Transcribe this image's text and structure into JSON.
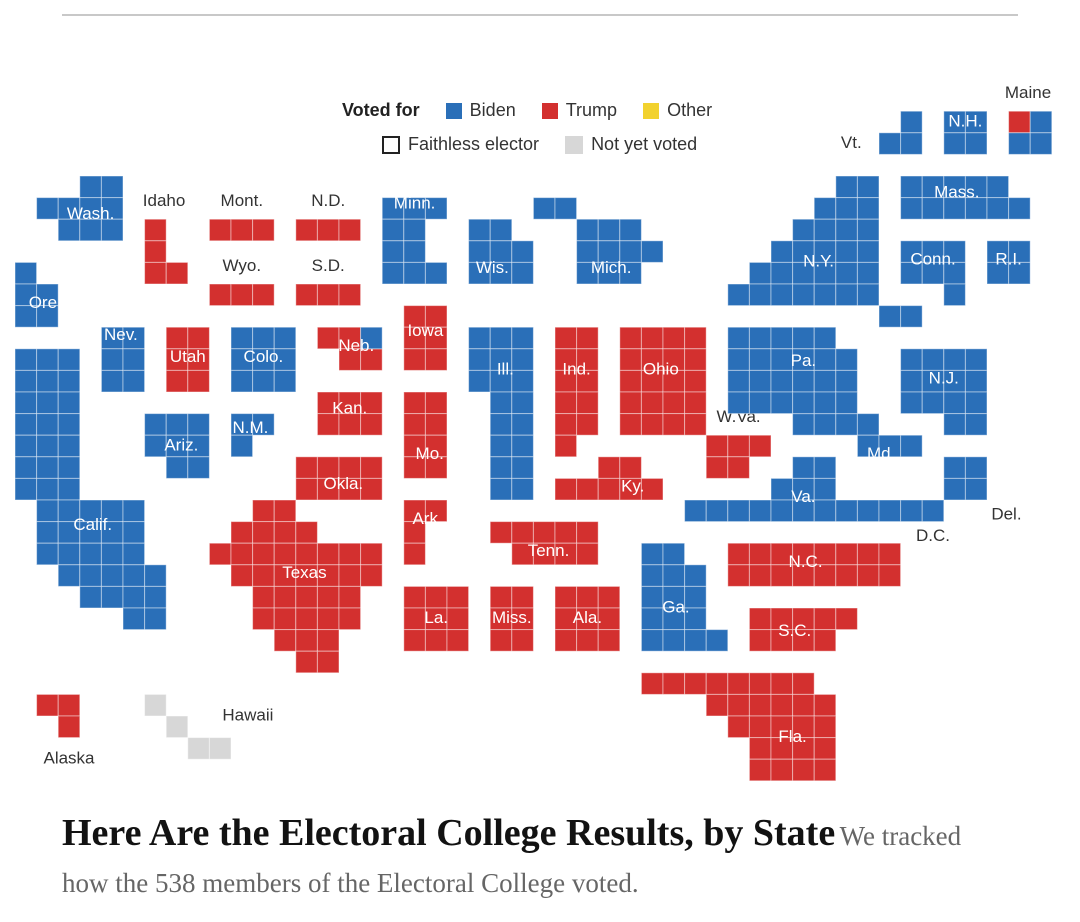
{
  "legend": {
    "title": "Voted for",
    "items": [
      {
        "label": "Biden",
        "color": "#2a6fb8"
      },
      {
        "label": "Trump",
        "color": "#d3302f"
      },
      {
        "label": "Other",
        "color": "#f2d22e"
      }
    ],
    "faithless_label": "Faithless elector",
    "not_voted_label": "Not yet voted",
    "not_voted_color": "#d7d7d7"
  },
  "colors": {
    "biden": "#2a6fb8",
    "trump": "#d3302f",
    "not_voted": "#d7d7d7",
    "outer_label": "#333333"
  },
  "states": [
    {
      "id": "wa",
      "label": "Washington",
      "text": "Wash.",
      "party": "biden",
      "electors": 12
    },
    {
      "id": "or",
      "label": "Oregon",
      "text": "Ore.",
      "party": "biden",
      "electors": 7
    },
    {
      "id": "ca",
      "label": "California",
      "text": "Calif.",
      "party": "biden",
      "electors": 55
    },
    {
      "id": "nv",
      "label": "Nevada",
      "text": "Nev.",
      "party": "biden",
      "electors": 6
    },
    {
      "id": "id",
      "label": "Idaho",
      "text": "Idaho",
      "party": "trump",
      "electors": 4
    },
    {
      "id": "mt",
      "label": "Montana",
      "text": "Mont.",
      "party": "trump",
      "electors": 3
    },
    {
      "id": "wy",
      "label": "Wyoming",
      "text": "Wyo.",
      "party": "trump",
      "electors": 3
    },
    {
      "id": "ut",
      "label": "Utah",
      "text": "Utah",
      "party": "trump",
      "electors": 6
    },
    {
      "id": "az",
      "label": "Arizona",
      "text": "Ariz.",
      "party": "biden",
      "electors": 11
    },
    {
      "id": "co",
      "label": "Colorado",
      "text": "Colo.",
      "party": "biden",
      "electors": 9
    },
    {
      "id": "nm",
      "label": "New Mexico",
      "text": "N.M.",
      "party": "biden",
      "electors": 5
    },
    {
      "id": "nd",
      "label": "North Dakota",
      "text": "N.D.",
      "party": "trump",
      "electors": 3
    },
    {
      "id": "sd",
      "label": "South Dakota",
      "text": "S.D.",
      "party": "trump",
      "electors": 3
    },
    {
      "id": "ne",
      "label": "Nebraska",
      "text": "Neb.",
      "party": "split",
      "electors": 5
    },
    {
      "id": "ks",
      "label": "Kansas",
      "text": "Kan.",
      "party": "trump",
      "electors": 6
    },
    {
      "id": "ok",
      "label": "Oklahoma",
      "text": "Okla.",
      "party": "trump",
      "electors": 7
    },
    {
      "id": "tx",
      "label": "Texas",
      "text": "Texas",
      "party": "trump",
      "electors": 38
    },
    {
      "id": "mn",
      "label": "Minnesota",
      "text": "Minn.",
      "party": "biden",
      "electors": 10
    },
    {
      "id": "ia",
      "label": "Iowa",
      "text": "Iowa",
      "party": "trump",
      "electors": 6
    },
    {
      "id": "mo",
      "label": "Missouri",
      "text": "Mo.",
      "party": "trump",
      "electors": 10
    },
    {
      "id": "ar",
      "label": "Arkansas",
      "text": "Ark.",
      "party": "trump",
      "electors": 6
    },
    {
      "id": "la",
      "label": "Louisiana",
      "text": "La.",
      "party": "trump",
      "electors": 8
    },
    {
      "id": "wi",
      "label": "Wisconsin",
      "text": "Wis.",
      "party": "biden",
      "electors": 10
    },
    {
      "id": "il",
      "label": "Illinois",
      "text": "Ill.",
      "party": "biden",
      "electors": 20
    },
    {
      "id": "ms",
      "label": "Mississippi",
      "text": "Miss.",
      "party": "trump",
      "electors": 6
    },
    {
      "id": "mi",
      "label": "Michigan",
      "text": "Mich.",
      "party": "biden",
      "electors": 16
    },
    {
      "id": "in",
      "label": "Indiana",
      "text": "Ind.",
      "party": "trump",
      "electors": 11
    },
    {
      "id": "ky",
      "label": "Kentucky",
      "text": "Ky.",
      "party": "trump",
      "electors": 8
    },
    {
      "id": "tn",
      "label": "Tennessee",
      "text": "Tenn.",
      "party": "trump",
      "electors": 11
    },
    {
      "id": "al",
      "label": "Alabama",
      "text": "Ala.",
      "party": "trump",
      "electors": 9
    },
    {
      "id": "oh",
      "label": "Ohio",
      "text": "Ohio",
      "party": "trump",
      "electors": 18
    },
    {
      "id": "ga",
      "label": "Georgia",
      "text": "Ga.",
      "party": "biden",
      "electors": 16
    },
    {
      "id": "fl",
      "label": "Florida",
      "text": "Fla.",
      "party": "trump",
      "electors": 29
    },
    {
      "id": "sc",
      "label": "South Carolina",
      "text": "S.C.",
      "party": "trump",
      "electors": 9
    },
    {
      "id": "nc",
      "label": "North Carolina",
      "text": "N.C.",
      "party": "trump",
      "electors": 15
    },
    {
      "id": "va",
      "label": "Virginia",
      "text": "Va.",
      "party": "biden",
      "electors": 13
    },
    {
      "id": "wv",
      "label": "West Virginia",
      "text": "W.Va.",
      "party": "trump",
      "electors": 5
    },
    {
      "id": "md",
      "label": "Maryland",
      "text": "Md.",
      "party": "biden",
      "electors": 10
    },
    {
      "id": "de",
      "label": "Delaware",
      "text": "Del.",
      "party": "biden",
      "electors": 3
    },
    {
      "id": "dc",
      "label": "District of Columbia",
      "text": "D.C.",
      "party": "biden",
      "electors": 3
    },
    {
      "id": "pa",
      "label": "Pennsylvania",
      "text": "Pa.",
      "party": "biden",
      "electors": 20
    },
    {
      "id": "nj",
      "label": "New Jersey",
      "text": "N.J.",
      "party": "biden",
      "electors": 14
    },
    {
      "id": "ny",
      "label": "New York",
      "text": "N.Y.",
      "party": "biden",
      "electors": 29
    },
    {
      "id": "ct",
      "label": "Connecticut",
      "text": "Conn.",
      "party": "biden",
      "electors": 7
    },
    {
      "id": "ri",
      "label": "Rhode Island",
      "text": "R.I.",
      "party": "biden",
      "electors": 4
    },
    {
      "id": "ma",
      "label": "Massachusetts",
      "text": "Mass.",
      "party": "biden",
      "electors": 11
    },
    {
      "id": "vt",
      "label": "Vermont",
      "text": "Vt.",
      "party": "biden",
      "electors": 3
    },
    {
      "id": "nh",
      "label": "New Hampshire",
      "text": "N.H.",
      "party": "biden",
      "electors": 4
    },
    {
      "id": "me",
      "label": "Maine",
      "text": "Maine",
      "party": "split",
      "electors": 4
    },
    {
      "id": "ak",
      "label": "Alaska",
      "text": "Alaska",
      "party": "trump",
      "electors": 3
    },
    {
      "id": "hi",
      "label": "Hawaii",
      "text": "Hawaii",
      "party": "not_voted",
      "electors": 4
    }
  ],
  "headline": "Here Are the Electoral College Results, by State",
  "dek": "We tracked how the 538 members of the Electoral College voted."
}
